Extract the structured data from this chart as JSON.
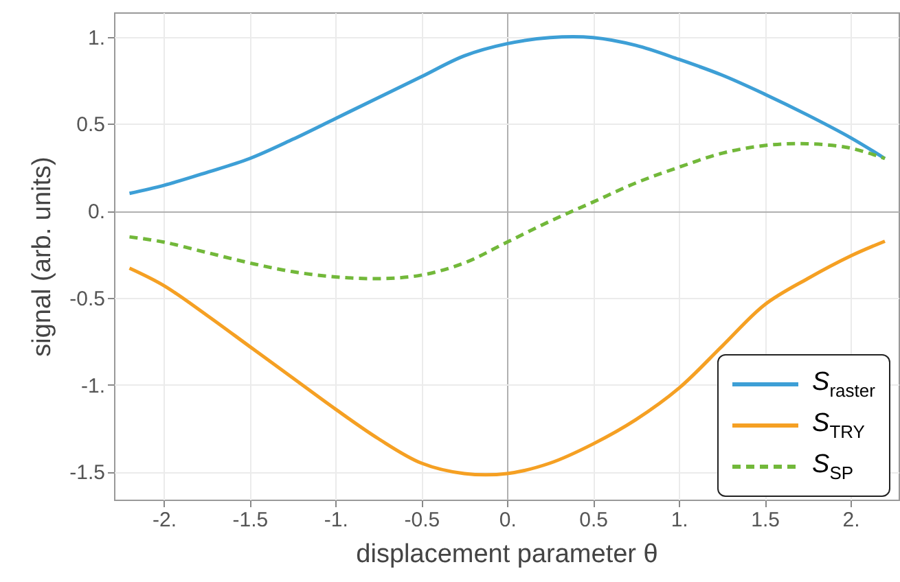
{
  "chart_data": {
    "type": "line",
    "xlabel": "displacement parameter  θ",
    "ylabel": "signal  (arb. units)",
    "xlim": [
      -2.29,
      2.28
    ],
    "ylim": [
      -1.66,
      1.14
    ],
    "xticks": [
      {
        "value": -2,
        "label": "-2."
      },
      {
        "value": -1.5,
        "label": "-1.5"
      },
      {
        "value": -1,
        "label": "-1."
      },
      {
        "value": -0.5,
        "label": "-0.5"
      },
      {
        "value": 0,
        "label": "0."
      },
      {
        "value": 0.5,
        "label": "0.5"
      },
      {
        "value": 1,
        "label": "1."
      },
      {
        "value": 1.5,
        "label": "1.5"
      },
      {
        "value": 2,
        "label": "2."
      }
    ],
    "yticks": [
      {
        "value": -1.5,
        "label": "-1.5"
      },
      {
        "value": -1,
        "label": "-1."
      },
      {
        "value": -0.5,
        "label": "-0.5"
      },
      {
        "value": 0,
        "label": "0."
      },
      {
        "value": 0.5,
        "label": "0.5"
      },
      {
        "value": 1,
        "label": "1."
      }
    ],
    "x": [
      -2.2,
      -2,
      -1.75,
      -1.5,
      -1.25,
      -1,
      -0.75,
      -0.5,
      -0.25,
      0,
      0.25,
      0.5,
      0.75,
      1,
      1.25,
      1.5,
      1.75,
      2,
      2.2
    ],
    "series": [
      {
        "name": "S$_{raster}$",
        "color": "#3d9fd6",
        "line_style": "solid",
        "values": [
          0.1,
          0.146,
          0.22,
          0.3,
          0.41,
          0.53,
          0.65,
          0.77,
          0.89,
          0.96,
          0.995,
          0.995,
          0.95,
          0.87,
          0.78,
          0.67,
          0.55,
          0.42,
          0.3
        ]
      },
      {
        "name": "S$_{TRY}$",
        "color": "#f5a023",
        "line_style": "solid",
        "values": [
          -0.33,
          -0.43,
          -0.6,
          -0.78,
          -0.96,
          -1.14,
          -1.31,
          -1.45,
          -1.51,
          -1.51,
          -1.45,
          -1.34,
          -1.2,
          -1.02,
          -0.78,
          -0.54,
          -0.39,
          -0.26,
          -0.175
        ]
      },
      {
        "name": "S$_{SP}$",
        "color": "#72b83a",
        "line_style": "dashed",
        "values": [
          -0.15,
          -0.18,
          -0.24,
          -0.3,
          -0.35,
          -0.38,
          -0.39,
          -0.37,
          -0.3,
          -0.18,
          -0.06,
          0.05,
          0.16,
          0.25,
          0.33,
          0.375,
          0.385,
          0.36,
          0.3
        ]
      }
    ],
    "grid": true,
    "legend": "bottom right"
  }
}
